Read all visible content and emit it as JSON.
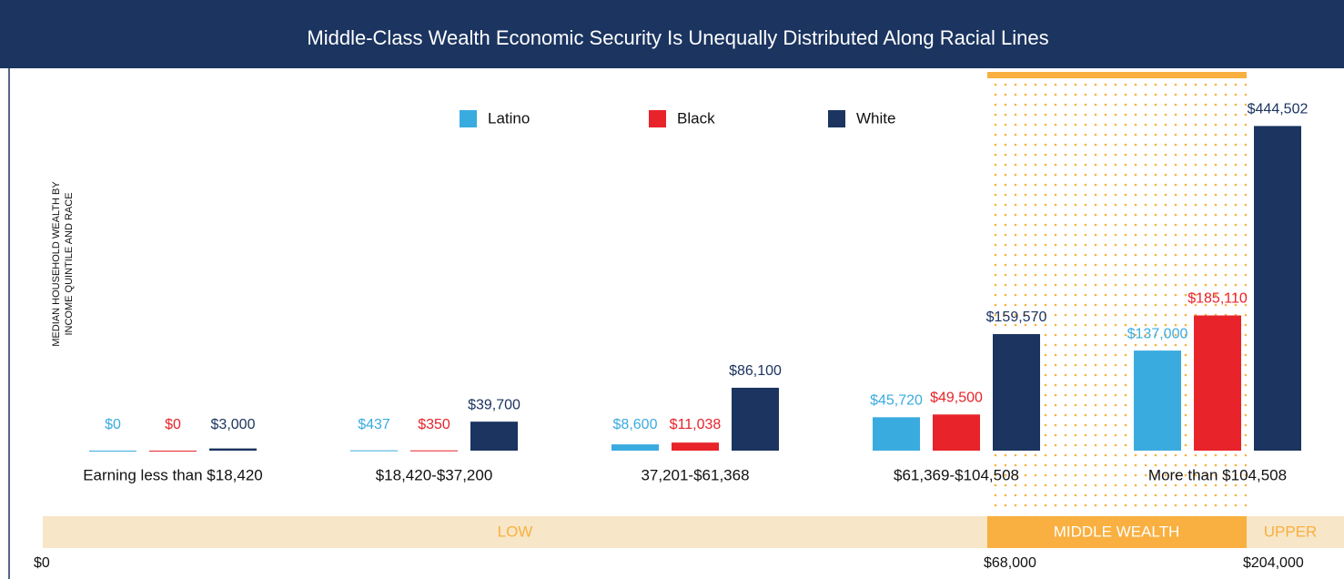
{
  "chart_data": {
    "type": "bar",
    "title": "Middle-Class Wealth Economic Security Is Unequally Distributed Along Racial Lines",
    "y_label": [
      "MEDIAN HOUSEHOLD WEALTH BY",
      "INCOME QUINTILE AND RACE"
    ],
    "categories": [
      "Earning less than $18,420",
      "$18,420-$37,200",
      "37,201-$61,368",
      "$61,369-$104,508",
      "More than $104,508"
    ],
    "series": [
      {
        "name": "Latino",
        "color": "#3aabdf",
        "values": [
          0,
          437,
          8600,
          45720,
          137000
        ],
        "value_labels": [
          "$0",
          "$437",
          "$8,600",
          "$45,720",
          "$137,000"
        ]
      },
      {
        "name": "Black",
        "color": "#e8232a",
        "values": [
          0,
          350,
          11038,
          49500,
          185110
        ],
        "value_labels": [
          "$0",
          "$350",
          "$11,038",
          "$49,500",
          "$185,110"
        ]
      },
      {
        "name": "White",
        "color": "#1b3460",
        "values": [
          3000,
          39700,
          86100,
          159570,
          444502
        ],
        "value_labels": [
          "$3,000",
          "$39,700",
          "$86,100",
          "$159,570",
          "$444,502"
        ]
      }
    ],
    "ylim": [
      0,
      450000
    ],
    "wealth_bands": [
      "LOW",
      "MIDDLE WEALTH",
      "UPPER"
    ],
    "wealth_thresholds": [
      "$0",
      "$68,000",
      "$204,000"
    ]
  }
}
